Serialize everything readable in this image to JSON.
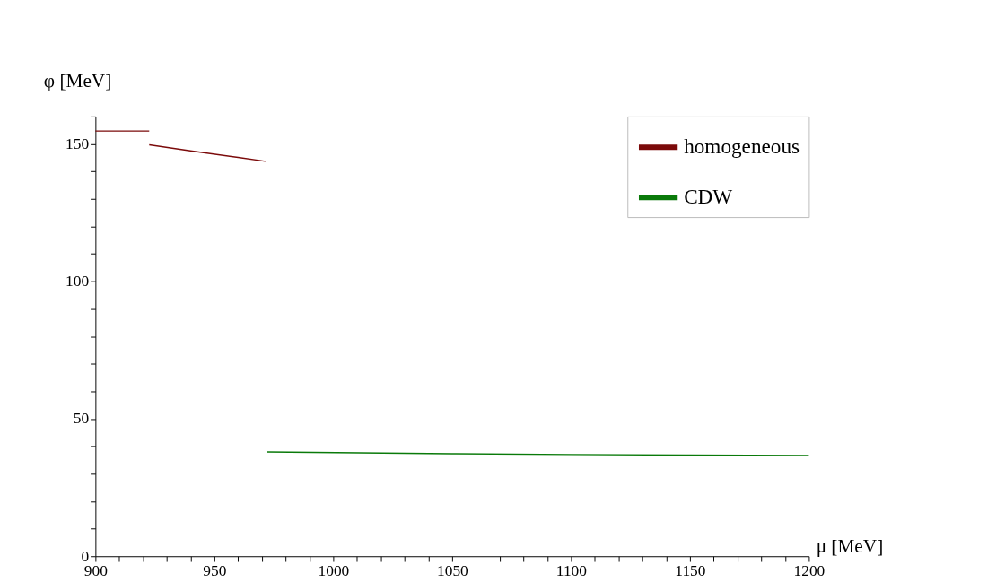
{
  "chart_data": {
    "type": "line",
    "xlabel": "μ [MeV]",
    "ylabel": "φ [MeV]",
    "xlim": [
      900,
      1200
    ],
    "ylim": [
      0,
      160
    ],
    "xticks": [
      900,
      {
        "value": 910,
        "label": null
      },
      {
        "value": 920,
        "label": null
      },
      {
        "value": 930,
        "label": null
      },
      {
        "value": 940,
        "label": null
      },
      950,
      {
        "value": 960,
        "label": null
      },
      {
        "value": 970,
        "label": null
      },
      {
        "value": 980,
        "label": null
      },
      {
        "value": 990,
        "label": null
      },
      1000,
      {
        "value": 1010,
        "label": null
      },
      {
        "value": 1020,
        "label": null
      },
      {
        "value": 1030,
        "label": null
      },
      {
        "value": 1040,
        "label": null
      },
      1050,
      {
        "value": 1060,
        "label": null
      },
      {
        "value": 1070,
        "label": null
      },
      {
        "value": 1080,
        "label": null
      },
      {
        "value": 1090,
        "label": null
      },
      1100,
      {
        "value": 1110,
        "label": null
      },
      {
        "value": 1120,
        "label": null
      },
      {
        "value": 1130,
        "label": null
      },
      {
        "value": 1140,
        "label": null
      },
      1150,
      {
        "value": 1160,
        "label": null
      },
      {
        "value": 1170,
        "label": null
      },
      {
        "value": 1180,
        "label": null
      },
      {
        "value": 1190,
        "label": null
      },
      1200
    ],
    "yticks": [
      0,
      {
        "value": 10,
        "label": null
      },
      {
        "value": 20,
        "label": null
      },
      {
        "value": 30,
        "label": null
      },
      {
        "value": 40,
        "label": null
      },
      50,
      {
        "value": 60,
        "label": null
      },
      {
        "value": 70,
        "label": null
      },
      {
        "value": 80,
        "label": null
      },
      {
        "value": 90,
        "label": null
      },
      100,
      {
        "value": 110,
        "label": null
      },
      {
        "value": 120,
        "label": null
      },
      {
        "value": 130,
        "label": null
      },
      {
        "value": 140,
        "label": null
      },
      150,
      {
        "value": 160,
        "label": null
      }
    ],
    "grid": false,
    "legend": "top right",
    "marker": "none",
    "line_style": "solid",
    "series": [
      {
        "name": "homogeneous",
        "color": "#7b0a0a",
        "x": [
          900,
          922.6,
          null,
          922.6,
          940,
          960,
          971.5
        ],
        "values": [
          154.7,
          154.7,
          null,
          149.7,
          147.5,
          145.1,
          143.7
        ]
      },
      {
        "name": "CDW",
        "color": "#0a7a0a",
        "x": [
          972,
          1050,
          1100,
          1150,
          1200
        ],
        "values": [
          37.9,
          37.3,
          37.0,
          36.8,
          36.6
        ]
      }
    ]
  }
}
